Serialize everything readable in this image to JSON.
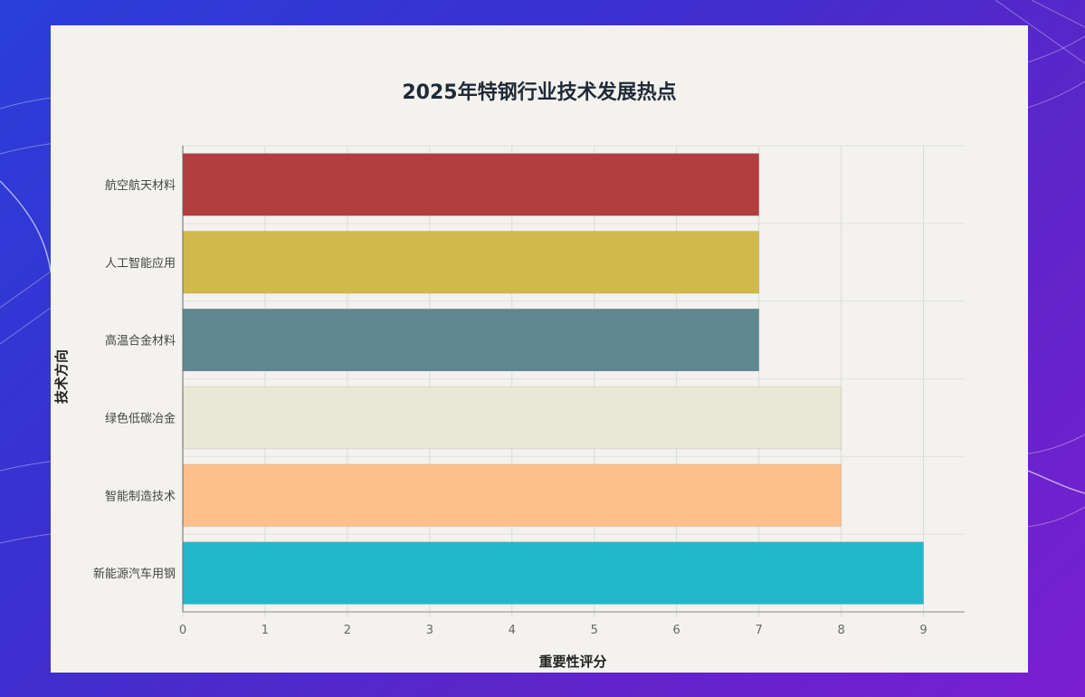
{
  "chart_data": {
    "type": "bar",
    "orientation": "horizontal",
    "title": "2025年特钢行业技术发展热点",
    "xlabel": "重要性评分",
    "ylabel": "技术方向",
    "xlim": [
      0,
      9.5
    ],
    "xticks": [
      "0",
      "1",
      "2",
      "3",
      "4",
      "5",
      "6",
      "7",
      "8",
      "9"
    ],
    "grid": true,
    "categories": [
      "航空航天材料",
      "人工智能应用",
      "高温合金材料",
      "绿色低碳冶金",
      "智能制造技术",
      "新能源汽车用钢"
    ],
    "values": [
      7,
      7,
      7,
      8,
      8,
      9
    ],
    "colors": [
      "#b23f3e",
      "#d2b94c",
      "#5f8790",
      "#e9e7d7",
      "#fdc08b",
      "#22b8cc"
    ]
  }
}
